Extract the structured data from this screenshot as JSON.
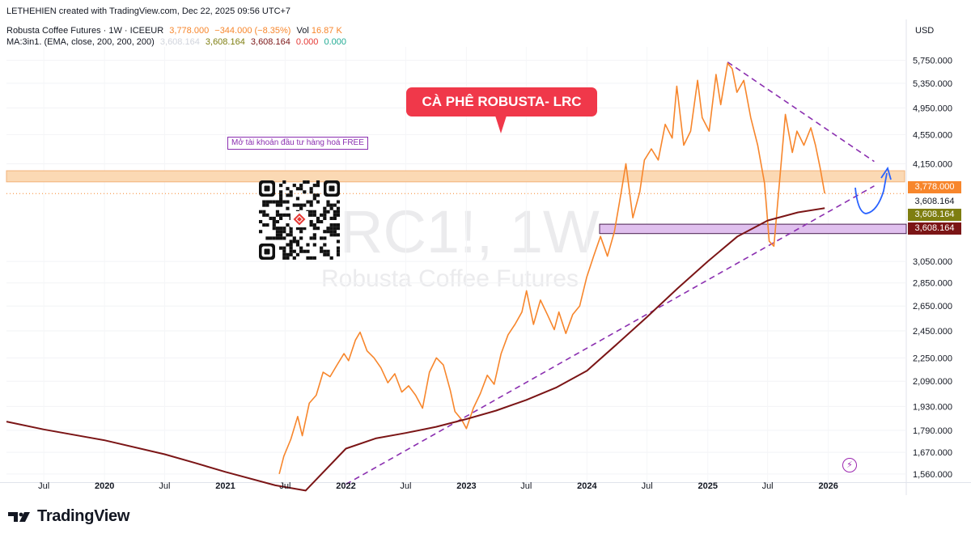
{
  "header": {
    "credit": "LETHEHIEN created with TradingView.com, Dec 22, 2025 09:56 UTC+7",
    "symbol_title": "Robusta Coffee Futures · 1W · ICEEUR",
    "price": "3,778.000",
    "change": "−344.000 (−8.35%)",
    "vol_label": "Vol",
    "vol_value": "16.87 K",
    "ma_label": "MA:3in1. (EMA, close, 200, 200, 200)",
    "ma_values": [
      "3,608.164",
      "3,608.164",
      "3,608.164"
    ],
    "ma_zero_1": "0.000",
    "ma_zero_2": "0.000"
  },
  "watermark": {
    "symbol": "RC1!, 1W",
    "description": "Robusta Coffee Futures"
  },
  "annotations": {
    "bubble_text": "CÀ PHÊ ROBUSTA- LRC",
    "promo_text": "Mở tài khoản đầu tư hàng hoá FREE"
  },
  "price_scale": {
    "currency": "USD",
    "badges": {
      "price": "3,778.000",
      "ma_plain": "3,608.164",
      "ma_olive": "3,608.164",
      "ma_red": "3,608.164"
    }
  },
  "footer": {
    "logo_text": "TradingView"
  },
  "colors": {
    "price_line": "#f7862c",
    "ma_line": "#7b1516",
    "trendline": "#8b2fb0",
    "resistance_band": "#fbd9b4",
    "support_band": "#e0c0ee",
    "projection_arrow": "#2962ff",
    "bubble": "#f0384a"
  },
  "chart_data": {
    "type": "line",
    "title": "Robusta Coffee Futures · 1W · ICEEUR",
    "y_scale": "log",
    "ylim": [
      1520,
      6000
    ],
    "y_ticks": [
      1560,
      1670,
      1790,
      1930,
      2090,
      2250,
      2450,
      2650,
      2850,
      3050,
      4150,
      4550,
      4950,
      5350,
      5750
    ],
    "y_tick_labels": [
      "1,560.000",
      "1,670.000",
      "1,790.000",
      "1,930.000",
      "2,090.000",
      "2,250.000",
      "2,450.000",
      "2,650.000",
      "2,850.000",
      "3,050.000",
      "4,150.000",
      "4,550.000",
      "4,950.000",
      "5,350.000",
      "5,750.000"
    ],
    "x_ticks": [
      {
        "date": "2019-07-01",
        "label": "Jul"
      },
      {
        "date": "2020-01-01",
        "label": "2020"
      },
      {
        "date": "2020-07-01",
        "label": "Jul"
      },
      {
        "date": "2021-01-01",
        "label": "2021"
      },
      {
        "date": "2021-07-01",
        "label": "Jul"
      },
      {
        "date": "2022-01-01",
        "label": "2022"
      },
      {
        "date": "2022-07-01",
        "label": "Jul"
      },
      {
        "date": "2023-01-01",
        "label": "2023"
      },
      {
        "date": "2023-07-01",
        "label": "Jul"
      },
      {
        "date": "2024-01-01",
        "label": "2024"
      },
      {
        "date": "2024-07-01",
        "label": "Jul"
      },
      {
        "date": "2025-01-01",
        "label": "2025"
      },
      {
        "date": "2025-07-01",
        "label": "Jul"
      },
      {
        "date": "2026-01-01",
        "label": "2026"
      }
    ],
    "xlim": [
      "2019-03-10",
      "2026-08-25"
    ],
    "series": [
      {
        "name": "Robusta Coffee Futures",
        "points": [
          [
            "2021-06-13",
            1560
          ],
          [
            "2021-06-27",
            1650
          ],
          [
            "2021-07-18",
            1740
          ],
          [
            "2021-08-08",
            1870
          ],
          [
            "2021-08-22",
            1760
          ],
          [
            "2021-09-12",
            1950
          ],
          [
            "2021-10-03",
            2000
          ],
          [
            "2021-10-24",
            2150
          ],
          [
            "2021-11-14",
            2120
          ],
          [
            "2021-12-05",
            2200
          ],
          [
            "2021-12-26",
            2280
          ],
          [
            "2022-01-09",
            2230
          ],
          [
            "2022-01-30",
            2380
          ],
          [
            "2022-02-13",
            2440
          ],
          [
            "2022-03-06",
            2300
          ],
          [
            "2022-03-27",
            2250
          ],
          [
            "2022-04-17",
            2180
          ],
          [
            "2022-05-08",
            2080
          ],
          [
            "2022-05-29",
            2140
          ],
          [
            "2022-06-19",
            2020
          ],
          [
            "2022-07-10",
            2060
          ],
          [
            "2022-07-31",
            2000
          ],
          [
            "2022-08-21",
            1920
          ],
          [
            "2022-09-11",
            2150
          ],
          [
            "2022-10-02",
            2250
          ],
          [
            "2022-10-23",
            2200
          ],
          [
            "2022-11-13",
            2030
          ],
          [
            "2022-11-27",
            1900
          ],
          [
            "2022-12-18",
            1850
          ],
          [
            "2023-01-01",
            1800
          ],
          [
            "2023-01-22",
            1920
          ],
          [
            "2023-02-12",
            2010
          ],
          [
            "2023-03-05",
            2130
          ],
          [
            "2023-03-26",
            2070
          ],
          [
            "2023-04-16",
            2280
          ],
          [
            "2023-05-07",
            2420
          ],
          [
            "2023-05-28",
            2500
          ],
          [
            "2023-06-18",
            2600
          ],
          [
            "2023-07-02",
            2780
          ],
          [
            "2023-07-23",
            2500
          ],
          [
            "2023-08-13",
            2700
          ],
          [
            "2023-09-03",
            2580
          ],
          [
            "2023-09-24",
            2460
          ],
          [
            "2023-10-08",
            2600
          ],
          [
            "2023-10-29",
            2430
          ],
          [
            "2023-11-19",
            2580
          ],
          [
            "2023-12-10",
            2650
          ],
          [
            "2023-12-31",
            2900
          ],
          [
            "2024-01-21",
            3100
          ],
          [
            "2024-02-11",
            3300
          ],
          [
            "2024-03-03",
            3100
          ],
          [
            "2024-03-24",
            3350
          ],
          [
            "2024-04-14",
            3800
          ],
          [
            "2024-04-28",
            4150
          ],
          [
            "2024-05-19",
            3500
          ],
          [
            "2024-06-09",
            3800
          ],
          [
            "2024-06-23",
            4200
          ],
          [
            "2024-07-14",
            4350
          ],
          [
            "2024-08-04",
            4200
          ],
          [
            "2024-08-25",
            4700
          ],
          [
            "2024-09-15",
            4500
          ],
          [
            "2024-09-29",
            5300
          ],
          [
            "2024-10-20",
            4400
          ],
          [
            "2024-11-10",
            4600
          ],
          [
            "2024-12-01",
            5400
          ],
          [
            "2024-12-15",
            4800
          ],
          [
            "2025-01-05",
            4600
          ],
          [
            "2025-01-26",
            5500
          ],
          [
            "2025-02-09",
            5000
          ],
          [
            "2025-03-02",
            5700
          ],
          [
            "2025-03-16",
            5600
          ],
          [
            "2025-03-30",
            5200
          ],
          [
            "2025-04-20",
            5400
          ],
          [
            "2025-05-11",
            4800
          ],
          [
            "2025-06-01",
            4400
          ],
          [
            "2025-06-22",
            3900
          ],
          [
            "2025-07-06",
            3250
          ],
          [
            "2025-07-20",
            3200
          ],
          [
            "2025-08-10",
            4100
          ],
          [
            "2025-08-24",
            4850
          ],
          [
            "2025-09-14",
            4300
          ],
          [
            "2025-09-28",
            4600
          ],
          [
            "2025-10-19",
            4400
          ],
          [
            "2025-11-09",
            4650
          ],
          [
            "2025-11-23",
            4400
          ],
          [
            "2025-12-07",
            4100
          ],
          [
            "2025-12-21",
            3778
          ]
        ]
      },
      {
        "name": "MA:3in1. (EMA, close, 200, 200, 200)",
        "points": [
          [
            "2019-03-10",
            1840
          ],
          [
            "2019-07-01",
            1795
          ],
          [
            "2020-01-01",
            1735
          ],
          [
            "2020-07-01",
            1660
          ],
          [
            "2020-10-01",
            1615
          ],
          [
            "2021-01-01",
            1570
          ],
          [
            "2021-06-01",
            1505
          ],
          [
            "2021-09-01",
            1480
          ],
          [
            "2022-01-01",
            1690
          ],
          [
            "2022-04-01",
            1745
          ],
          [
            "2022-07-01",
            1775
          ],
          [
            "2022-10-01",
            1810
          ],
          [
            "2023-01-01",
            1855
          ],
          [
            "2023-04-01",
            1905
          ],
          [
            "2023-07-01",
            1970
          ],
          [
            "2023-10-01",
            2050
          ],
          [
            "2024-01-01",
            2160
          ],
          [
            "2024-04-01",
            2350
          ],
          [
            "2024-07-01",
            2560
          ],
          [
            "2024-10-01",
            2800
          ],
          [
            "2025-01-01",
            3050
          ],
          [
            "2025-04-01",
            3300
          ],
          [
            "2025-07-01",
            3470
          ],
          [
            "2025-10-01",
            3560
          ],
          [
            "2025-12-21",
            3608.164
          ]
        ]
      }
    ],
    "trendlines": [
      {
        "from": [
          "2022-01-01",
          1510
        ],
        "to": [
          "2026-05-20",
          3870
        ]
      },
      {
        "from": [
          "2025-03-02",
          5720
        ],
        "to": [
          "2026-05-20",
          4180
        ]
      }
    ],
    "zones": [
      {
        "name": "resistance",
        "from_price": 3920,
        "to_price": 4060
      },
      {
        "name": "support",
        "from_price": 3330,
        "to_price": 3430
      }
    ]
  }
}
